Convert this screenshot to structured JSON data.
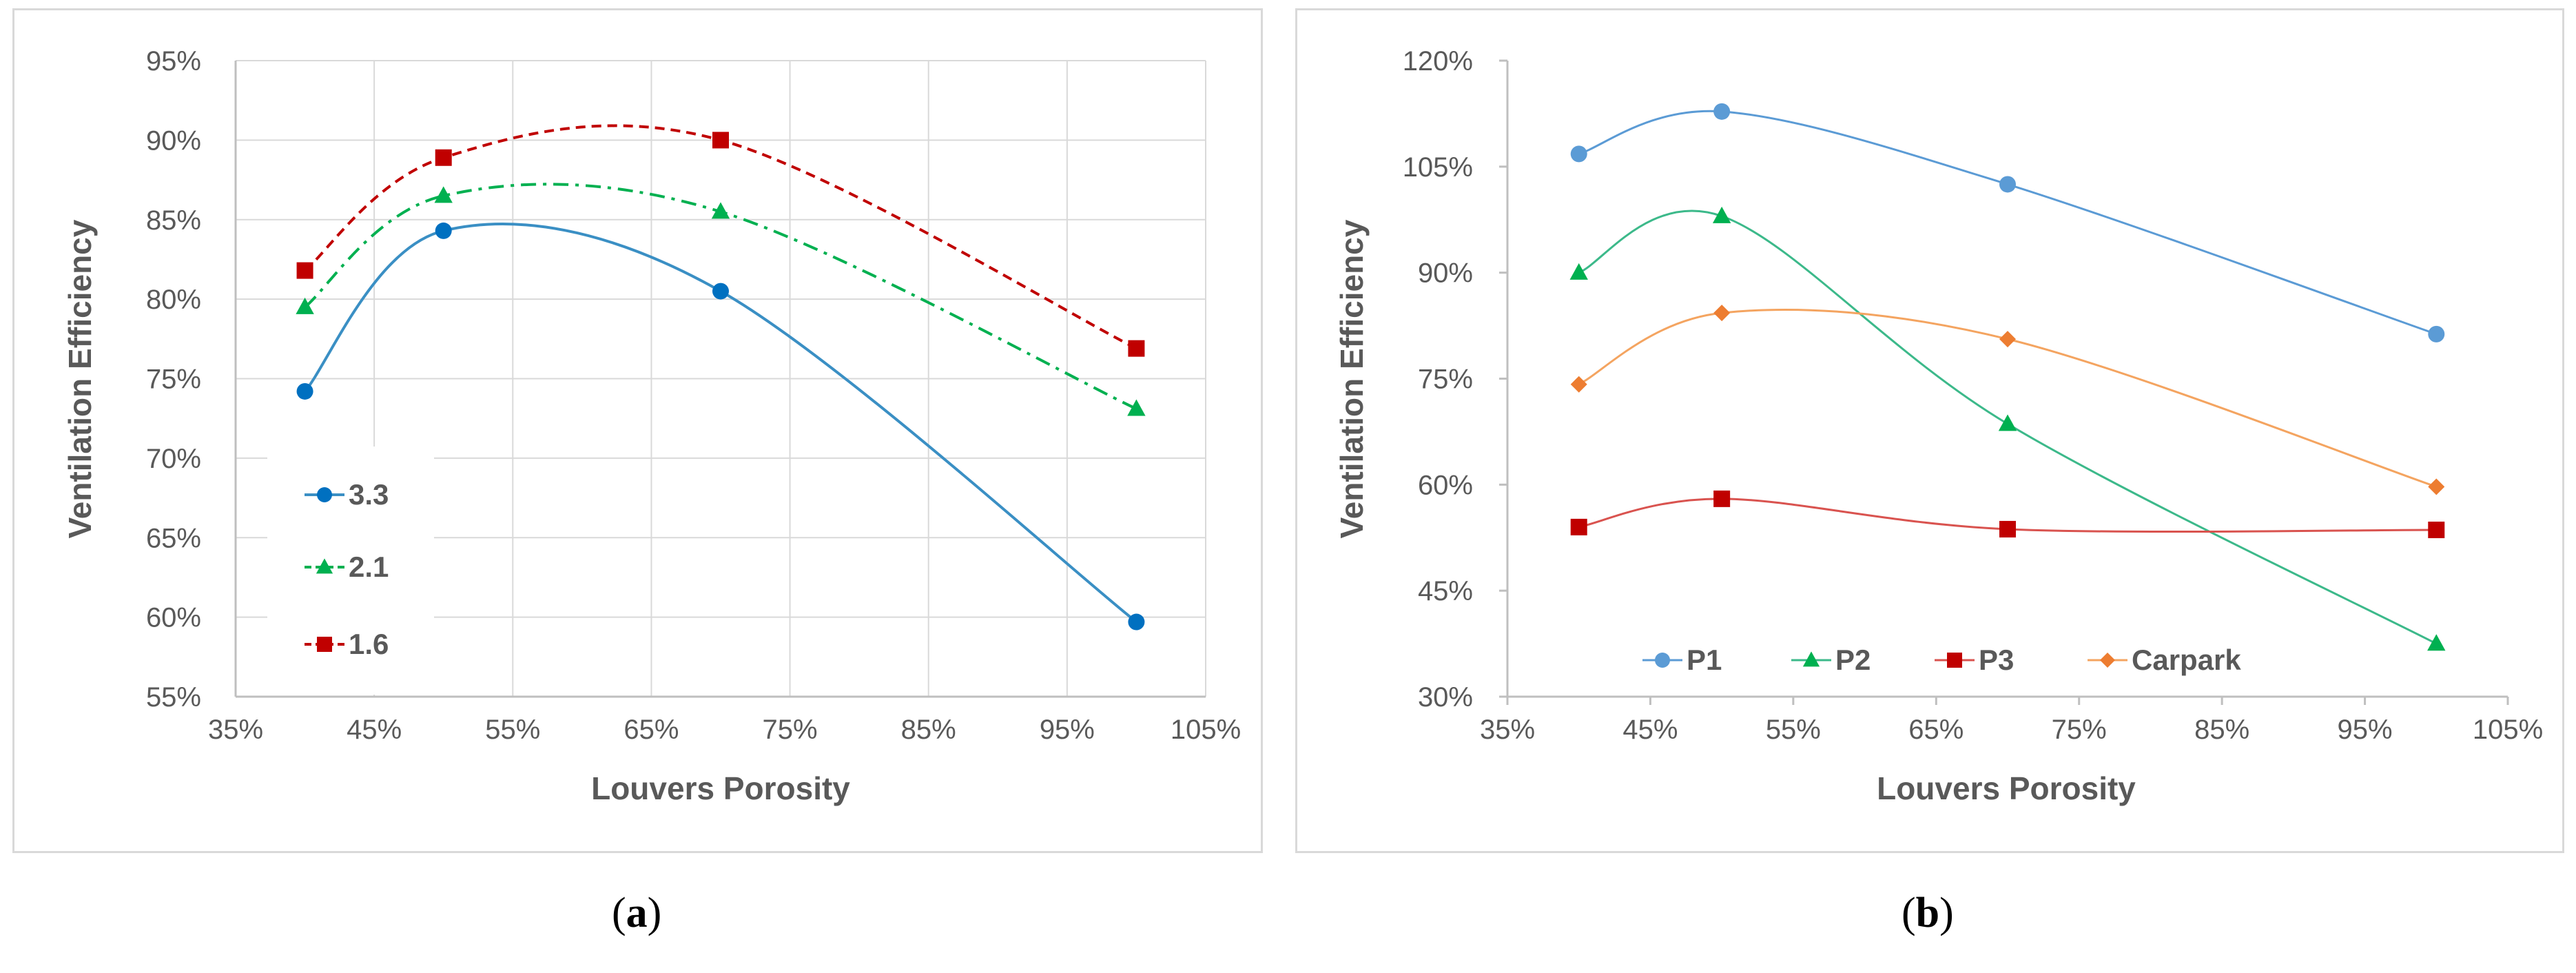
{
  "chart_data": [
    {
      "type": "line",
      "caption": "a",
      "xlabel": "Louvers Porosity",
      "ylabel": "Ventilation Efficiency",
      "xlim": [
        35,
        105
      ],
      "ylim": [
        55,
        95
      ],
      "xticks": [
        "35%",
        "45%",
        "55%",
        "65%",
        "75%",
        "85%",
        "95%",
        "105%"
      ],
      "yticks": [
        "55%",
        "60%",
        "65%",
        "70%",
        "75%",
        "80%",
        "85%",
        "90%",
        "95%"
      ],
      "x": [
        40,
        50,
        70,
        100
      ],
      "legend_position": "bottom-left",
      "grid": true,
      "series": [
        {
          "name": "3.3",
          "values": [
            74.2,
            84.3,
            80.5,
            59.7
          ],
          "color": "#3a8fc4",
          "marker": "circle",
          "marker_color": "#0070c0",
          "dash": ""
        },
        {
          "name": "2.1",
          "values": [
            79.5,
            86.5,
            85.5,
            73.1
          ],
          "color": "#00b050",
          "marker": "triangle",
          "marker_color": "#00b050",
          "dash": "22,10,5,10"
        },
        {
          "name": "1.6",
          "values": [
            81.8,
            88.9,
            90.0,
            76.9
          ],
          "color": "#c00000",
          "marker": "square",
          "marker_color": "#c00000",
          "dash": "14,9"
        }
      ]
    },
    {
      "type": "line",
      "caption": "b",
      "xlabel": "Louvers Porosity",
      "ylabel": "Ventilation Efficiency",
      "xlim": [
        35,
        105
      ],
      "ylim": [
        30,
        120
      ],
      "xticks": [
        "35%",
        "45%",
        "55%",
        "65%",
        "75%",
        "85%",
        "95%",
        "105%"
      ],
      "yticks": [
        "30%",
        "45%",
        "60%",
        "75%",
        "90%",
        "105%",
        "120%"
      ],
      "x": [
        40,
        50,
        70,
        100
      ],
      "legend_position": "bottom-left",
      "grid": false,
      "series": [
        {
          "name": "P1",
          "values": [
            106.8,
            112.8,
            102.5,
            81.3
          ],
          "color": "#5b9bd5",
          "marker": "circle",
          "marker_color": "#5b9bd5",
          "dash": ""
        },
        {
          "name": "P2",
          "values": [
            90.0,
            98.0,
            68.6,
            37.5
          ],
          "color": "#3cb98a",
          "marker": "triangle",
          "marker_color": "#00b050",
          "dash": ""
        },
        {
          "name": "P3",
          "values": [
            54.0,
            58.0,
            53.7,
            53.6
          ],
          "color": "#d9534f",
          "marker": "square",
          "marker_color": "#c00000",
          "dash": ""
        },
        {
          "name": "Carpark",
          "values": [
            74.2,
            84.3,
            80.6,
            59.7
          ],
          "color": "#f4a460",
          "marker": "diamond",
          "marker_color": "#ed7d31",
          "dash": ""
        }
      ]
    }
  ]
}
